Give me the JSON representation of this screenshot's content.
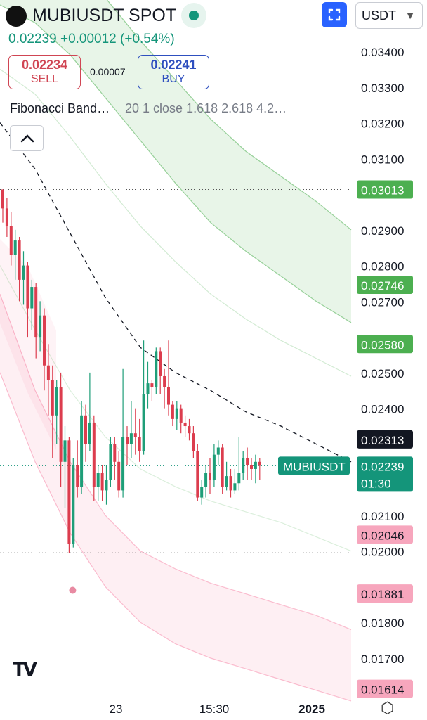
{
  "header": {
    "symbol": "MUBIUSDT SPOT",
    "last_price": "0.02239",
    "change": "+0.00012",
    "change_pct": "(+0.54%)",
    "currency": "USDT",
    "accent": "#14957a"
  },
  "order": {
    "sell_price": "0.02234",
    "sell_label": "SELL",
    "spread": "0.00007",
    "buy_price": "0.02241",
    "buy_label": "BUY"
  },
  "indicator": {
    "name": "Fibonacci Band…",
    "params": "20 1 close 1.618 2.618 4.2…"
  },
  "icons": [
    "exchange-logo-icon",
    "live-dot-icon",
    "fullscreen-icon",
    "chevron-down-icon",
    "chevron-up-icon",
    "tradingview-logo-icon",
    "settings-icon"
  ],
  "branding": {
    "logo_text": "TV"
  },
  "chart_data": {
    "type": "candlestick",
    "ylim": [
      0.0158,
      0.0349
    ],
    "y_ticks": [
      "0.03400",
      "0.03300",
      "0.03200",
      "0.03100",
      "0.02900",
      "0.02800",
      "0.02700",
      "0.02500",
      "0.02400",
      "0.02100",
      "0.02000",
      "0.01800",
      "0.01700"
    ],
    "x_ticks": [
      "23",
      "15:30",
      "2025"
    ],
    "price_tags": [
      {
        "value": "0.03013",
        "color": "#4caf50"
      },
      {
        "value": "0.02746",
        "color": "#4caf50"
      },
      {
        "value": "0.02580",
        "color": "#4caf50"
      },
      {
        "value": "0.02313",
        "color": "#131722"
      },
      {
        "value": "0.02046",
        "color": "#f7a6bd"
      },
      {
        "value": "0.01881",
        "color": "#f7a6bd"
      },
      {
        "value": "0.01614",
        "color": "#f7a6bd"
      }
    ],
    "current": {
      "symbol": "MUBIUSDT",
      "value": "0.02239",
      "countdown": "01:30",
      "color": "#14957a"
    },
    "high_line": 0.03013,
    "low_line": 0.01995,
    "up_color": "#1e9e78",
    "down_color": "#dc3d4e",
    "candles": [
      [
        0.03013,
        0.0296,
        0.03013,
        0.0292
      ],
      [
        0.0296,
        0.0291,
        0.0299,
        0.0288
      ],
      [
        0.0291,
        0.0283,
        0.0295,
        0.028
      ],
      [
        0.0283,
        0.0287,
        0.029,
        0.0276
      ],
      [
        0.0287,
        0.0276,
        0.0288,
        0.027
      ],
      [
        0.0276,
        0.028,
        0.0284,
        0.0269
      ],
      [
        0.028,
        0.0268,
        0.0281,
        0.026
      ],
      [
        0.0268,
        0.0274,
        0.0276,
        0.0262
      ],
      [
        0.0274,
        0.026,
        0.0275,
        0.0254
      ],
      [
        0.026,
        0.0266,
        0.027,
        0.0256
      ],
      [
        0.0266,
        0.0252,
        0.0268,
        0.0245
      ],
      [
        0.0252,
        0.0248,
        0.0258,
        0.0238
      ],
      [
        0.0248,
        0.0238,
        0.0252,
        0.0226
      ],
      [
        0.0238,
        0.0246,
        0.0248,
        0.023
      ],
      [
        0.0246,
        0.0225,
        0.025,
        0.0218
      ],
      [
        0.0225,
        0.0231,
        0.0235,
        0.0212
      ],
      [
        0.0231,
        0.0202,
        0.0232,
        0.01995
      ],
      [
        0.0202,
        0.0224,
        0.0226,
        0.0201
      ],
      [
        0.0224,
        0.0218,
        0.0231,
        0.0215
      ],
      [
        0.0218,
        0.0238,
        0.0242,
        0.0216
      ],
      [
        0.0238,
        0.023,
        0.0241,
        0.0225
      ],
      [
        0.023,
        0.0236,
        0.025,
        0.0228
      ],
      [
        0.0236,
        0.0218,
        0.0238,
        0.0214
      ],
      [
        0.0218,
        0.0222,
        0.0224,
        0.0214
      ],
      [
        0.0222,
        0.0217,
        0.0224,
        0.0214
      ],
      [
        0.0217,
        0.022,
        0.0224,
        0.0213
      ],
      [
        0.022,
        0.023,
        0.0232,
        0.0218
      ],
      [
        0.023,
        0.0225,
        0.0232,
        0.022
      ],
      [
        0.0225,
        0.0217,
        0.0228,
        0.0215
      ],
      [
        0.0217,
        0.0232,
        0.0251,
        0.0215
      ],
      [
        0.0232,
        0.023,
        0.0235,
        0.0224
      ],
      [
        0.023,
        0.0233,
        0.0242,
        0.0226
      ],
      [
        0.0233,
        0.0232,
        0.024,
        0.0227
      ],
      [
        0.0232,
        0.0228,
        0.0237,
        0.0225
      ],
      [
        0.0228,
        0.0244,
        0.0259,
        0.0227
      ],
      [
        0.0244,
        0.0247,
        0.0253,
        0.024
      ],
      [
        0.0247,
        0.0246,
        0.0248,
        0.0242
      ],
      [
        0.0246,
        0.0256,
        0.0257,
        0.0244
      ],
      [
        0.0256,
        0.0249,
        0.0257,
        0.0244
      ],
      [
        0.0249,
        0.0246,
        0.0251,
        0.024
      ],
      [
        0.0246,
        0.0241,
        0.0259,
        0.0238
      ],
      [
        0.0241,
        0.0237,
        0.0242,
        0.0235
      ],
      [
        0.0237,
        0.024,
        0.0242,
        0.0234
      ],
      [
        0.024,
        0.0236,
        0.0241,
        0.0233
      ],
      [
        0.0236,
        0.0235,
        0.0238,
        0.0232
      ],
      [
        0.0235,
        0.0233,
        0.0237,
        0.0231
      ],
      [
        0.0233,
        0.0228,
        0.0235,
        0.0226
      ],
      [
        0.0228,
        0.0215,
        0.023,
        0.0214
      ],
      [
        0.0215,
        0.0218,
        0.022,
        0.0213
      ],
      [
        0.0218,
        0.0222,
        0.0224,
        0.0215
      ],
      [
        0.0222,
        0.022,
        0.0226,
        0.0216
      ],
      [
        0.022,
        0.0227,
        0.023,
        0.0218
      ],
      [
        0.0227,
        0.0229,
        0.0231,
        0.0224
      ],
      [
        0.0229,
        0.0218,
        0.023,
        0.0216
      ],
      [
        0.0218,
        0.0221,
        0.0225,
        0.0217
      ],
      [
        0.0221,
        0.0217,
        0.0223,
        0.0215
      ],
      [
        0.0217,
        0.0219,
        0.0223,
        0.0216
      ],
      [
        0.0219,
        0.0222,
        0.0232,
        0.0217
      ],
      [
        0.0222,
        0.0226,
        0.0228,
        0.022
      ],
      [
        0.0226,
        0.0224,
        0.0229,
        0.022
      ],
      [
        0.0224,
        0.0223,
        0.0226,
        0.022
      ],
      [
        0.0223,
        0.0225,
        0.0227,
        0.0219
      ],
      [
        0.0225,
        0.02239,
        0.0226,
        0.022
      ]
    ],
    "bands": {
      "x": [
        0,
        50,
        100,
        150,
        200,
        250,
        300,
        350,
        400,
        450,
        500
      ],
      "upper_outer": [
        0.038,
        0.0375,
        0.0366,
        0.0355,
        0.0343,
        0.0332,
        0.0321,
        0.0312,
        0.0305,
        0.0298,
        0.029
      ],
      "upper_mid": [
        0.0353,
        0.0348,
        0.0339,
        0.0327,
        0.0315,
        0.0303,
        0.0292,
        0.0284,
        0.0277,
        0.027,
        0.0264
      ],
      "upper_inner": [
        0.0335,
        0.0328,
        0.0316,
        0.0303,
        0.0291,
        0.0281,
        0.0272,
        0.0265,
        0.0259,
        0.0254,
        0.0249
      ],
      "basis": [
        0.032,
        0.0307,
        0.0289,
        0.0271,
        0.0257,
        0.025,
        0.0245,
        0.0239,
        0.0235,
        0.023,
        0.0225
      ],
      "lower_inner": [
        0.028,
        0.0262,
        0.0245,
        0.0232,
        0.0223,
        0.0218,
        0.0214,
        0.0211,
        0.0208,
        0.0204,
        0.02
      ],
      "lower_mid": [
        0.0272,
        0.0245,
        0.0225,
        0.021,
        0.02,
        0.0195,
        0.0191,
        0.0188,
        0.0185,
        0.0182,
        0.0178
      ],
      "lower_outer": [
        0.025,
        0.0225,
        0.0205,
        0.019,
        0.018,
        0.0174,
        0.017,
        0.0167,
        0.0164,
        0.0161,
        0.0158
      ]
    },
    "marker": {
      "index": 16,
      "value": 0.0189,
      "color": "#e88aa2"
    }
  }
}
